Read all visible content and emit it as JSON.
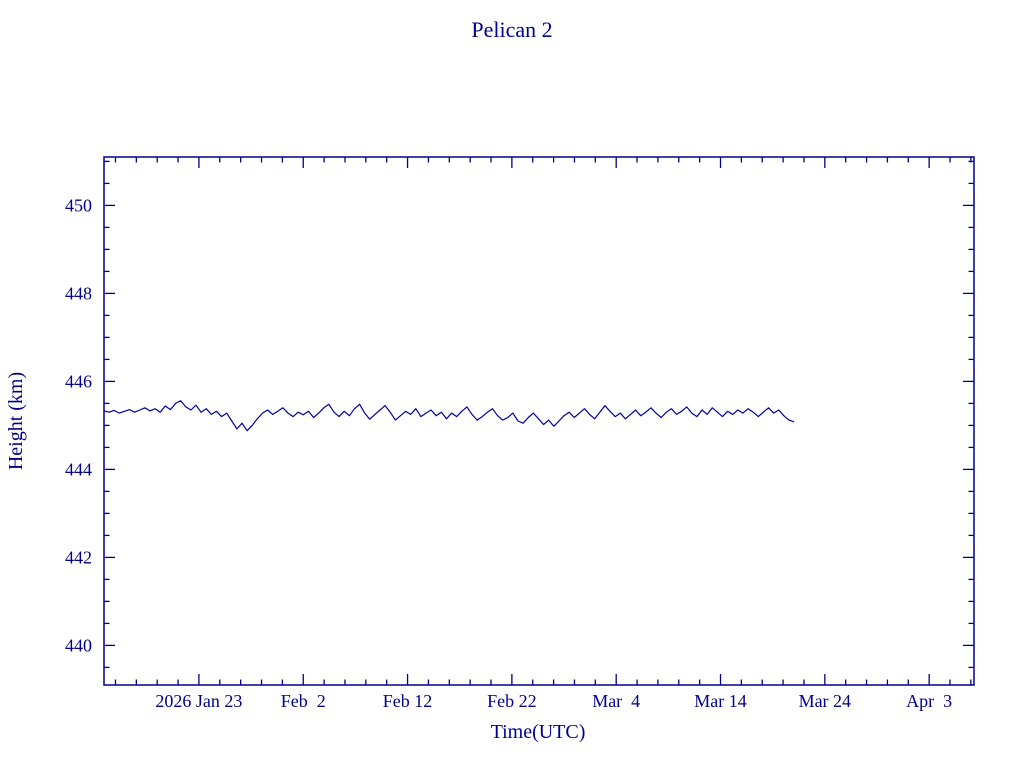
{
  "page_title": "Pelican 2",
  "colors": {
    "axis": "#00008B",
    "text": "#00008B",
    "line": "#0000A8",
    "background": "#FFFFFF"
  },
  "chart_data": {
    "type": "line",
    "title": "Pelican 2",
    "xlabel": "Time(UTC)",
    "ylabel": "Height (km)",
    "grid": false,
    "legend": "none",
    "x_axis": {
      "unit": "days since 2026 Jan 13",
      "range": [
        0.9,
        84.3
      ],
      "tick_days": [
        10,
        20,
        30,
        40,
        50,
        60,
        70,
        80
      ],
      "tick_labels": [
        "2026 Jan 23",
        "Feb  2",
        "Feb 12",
        "Feb 22",
        "Mar  4",
        "Mar 14",
        "Mar 24",
        "Apr  3"
      ],
      "minor_tick_step_days": 2
    },
    "y_axis": {
      "range": [
        439.1,
        451.1
      ],
      "ticks": [
        440,
        442,
        444,
        446,
        448,
        450
      ],
      "tick_labels": [
        "440",
        "442",
        "444",
        "446",
        "448",
        "450"
      ],
      "minor_tick_step": 0.5
    },
    "series": [
      {
        "name": "pelican-2-height",
        "x_start_day": 0.9,
        "x_step_days": 0.49,
        "values": [
          445.33,
          445.3,
          445.34,
          445.28,
          445.32,
          445.36,
          445.3,
          445.35,
          445.4,
          445.33,
          445.38,
          445.3,
          445.44,
          445.36,
          445.5,
          445.56,
          445.42,
          445.35,
          445.46,
          445.3,
          445.38,
          445.25,
          445.32,
          445.2,
          445.28,
          445.1,
          444.92,
          445.05,
          444.88,
          445.0,
          445.15,
          445.28,
          445.35,
          445.25,
          445.32,
          445.4,
          445.28,
          445.2,
          445.3,
          445.24,
          445.32,
          445.18,
          445.28,
          445.4,
          445.48,
          445.3,
          445.2,
          445.32,
          445.22,
          445.38,
          445.48,
          445.28,
          445.14,
          445.25,
          445.35,
          445.45,
          445.3,
          445.12,
          445.22,
          445.32,
          445.25,
          445.38,
          445.2,
          445.28,
          445.35,
          445.22,
          445.3,
          445.15,
          445.28,
          445.2,
          445.32,
          445.42,
          445.25,
          445.12,
          445.2,
          445.3,
          445.38,
          445.22,
          445.12,
          445.18,
          445.28,
          445.1,
          445.05,
          445.18,
          445.28,
          445.15,
          445.02,
          445.12,
          444.98,
          445.1,
          445.22,
          445.3,
          445.18,
          445.28,
          445.38,
          445.25,
          445.15,
          445.3,
          445.45,
          445.32,
          445.2,
          445.28,
          445.15,
          445.25,
          445.35,
          445.22,
          445.3,
          445.4,
          445.28,
          445.18,
          445.3,
          445.38,
          445.25,
          445.32,
          445.42,
          445.28,
          445.2,
          445.35,
          445.25,
          445.4,
          445.3,
          445.2,
          445.32,
          445.25,
          445.35,
          445.28,
          445.38,
          445.3,
          445.2,
          445.3,
          445.4,
          445.28,
          445.35,
          445.22,
          445.12,
          445.08
        ]
      }
    ]
  }
}
